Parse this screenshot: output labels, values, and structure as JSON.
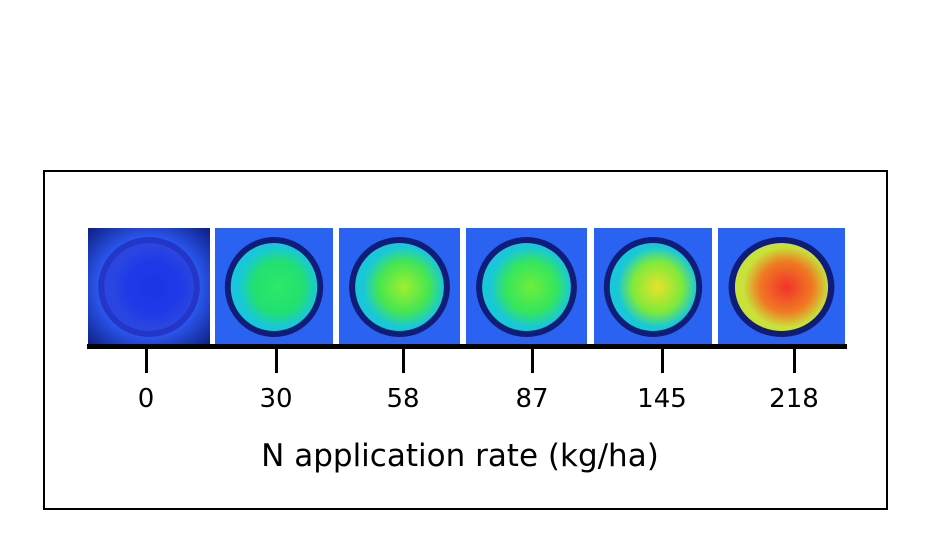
{
  "figure": {
    "samples": [
      {
        "rate": "0",
        "ring": "#2436c8",
        "core": "#1b34e6",
        "mid": "#1e3ae8",
        "edge": "#2a45e0",
        "bg": "#2a58f0",
        "corner": "#0a1470"
      },
      {
        "rate": "30",
        "ring": "#101c78",
        "core": "#2ee86a",
        "mid": "#22e070",
        "edge": "#18c8d8",
        "bg": "#2a62f2",
        "corner": "#2a62f2"
      },
      {
        "rate": "58",
        "ring": "#101c78",
        "core": "#9ef02e",
        "mid": "#44e652",
        "edge": "#18c8d8",
        "bg": "#2a62f2",
        "corner": "#2a62f2"
      },
      {
        "rate": "87",
        "ring": "#101c78",
        "core": "#6eee3c",
        "mid": "#34e65c",
        "edge": "#18c8d8",
        "bg": "#2a62f2",
        "corner": "#2a62f2"
      },
      {
        "rate": "145",
        "ring": "#101c78",
        "core": "#e8e22a",
        "mid": "#7eea3a",
        "edge": "#18c8d8",
        "bg": "#2a62f2",
        "corner": "#2a62f2"
      },
      {
        "rate": "218",
        "ring": "#101c78",
        "core": "#f0342a",
        "mid": "#f07a22",
        "edge": "#c8e23a",
        "bg": "#2a62f2",
        "corner": "#2a62f2"
      }
    ],
    "x_axis_label": "N application rate (kg/ha)"
  }
}
